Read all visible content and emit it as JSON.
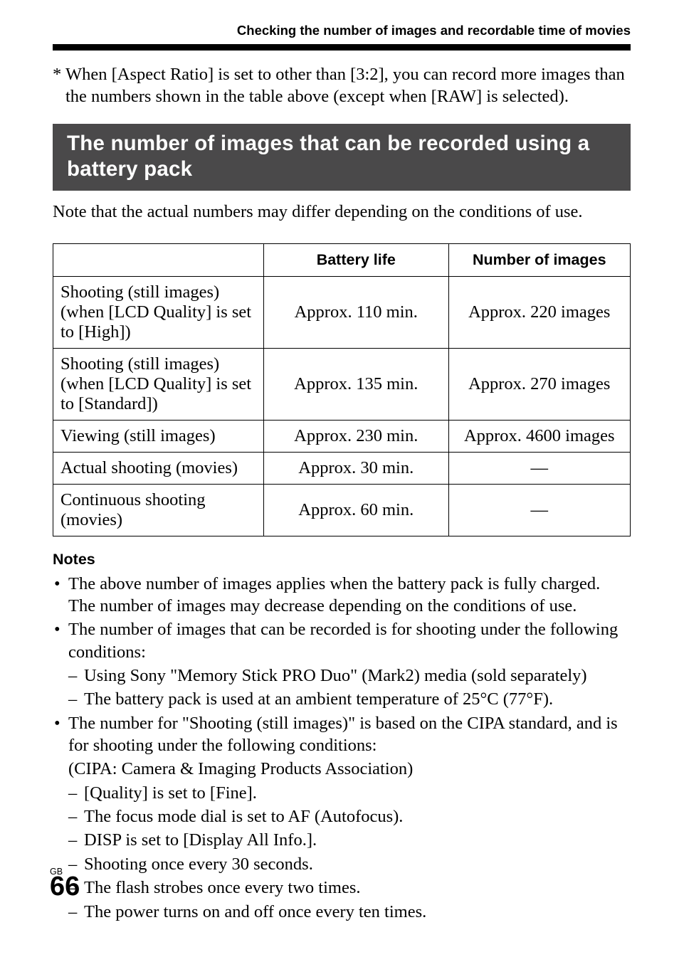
{
  "header": {
    "running_title": "Checking the number of images and recordable time of movies"
  },
  "footnote": {
    "marker": "*",
    "text": "When [Aspect Ratio] is set to other than [3:2], you can record more images than the numbers shown in the table above (except when [RAW] is selected)."
  },
  "section_title": "The number of images that can be recorded using a battery pack",
  "intro": "Note that the actual numbers may differ depending on the conditions of use.",
  "table": {
    "columns": [
      "",
      "Battery life",
      "Number of images"
    ],
    "col_widths_pct": [
      36.5,
      32,
      31.5
    ],
    "border_color": "#000000",
    "header_font_family": "Arial",
    "header_fontsize_pt": 16,
    "cell_fontsize_pt": 18,
    "rows": [
      {
        "label": "Shooting (still images) (when [LCD Quality] is set to [High])",
        "battery": "Approx. 110 min.",
        "images": "Approx. 220 images"
      },
      {
        "label": "Shooting (still images) (when [LCD Quality] is set to [Standard])",
        "battery": "Approx. 135 min.",
        "images": "Approx. 270 images"
      },
      {
        "label": "Viewing (still images)",
        "battery": "Approx. 230 min.",
        "images": "Approx. 4600 images"
      },
      {
        "label": "Actual shooting (movies)",
        "battery": "Approx. 30 min.",
        "images": "—"
      },
      {
        "label": "Continuous shooting (movies)",
        "battery": "Approx. 60 min.",
        "images": "—"
      }
    ]
  },
  "notes": {
    "heading": "Notes",
    "items": [
      {
        "text": "The above number of images applies when the battery pack is fully charged. The number of images may decrease depending on the conditions of use."
      },
      {
        "text": "The number of images that can be recorded is for shooting under the following conditions:",
        "sub": [
          "Using Sony \"Memory Stick PRO Duo\" (Mark2) media (sold separately)",
          "The battery pack is used at an ambient temperature of 25°C (77°F)."
        ]
      },
      {
        "text": "The number for \"Shooting (still images)\" is based on the CIPA standard, and is for shooting under the following conditions:",
        "plain_after": "(CIPA: Camera & Imaging Products Association)",
        "sub": [
          "[Quality] is set to [Fine].",
          "The focus mode dial is set to AF (Autofocus).",
          "DISP is set to [Display All Info.].",
          "Shooting once every 30 seconds.",
          "The flash strobes once every two times.",
          "The power turns on and off once every ten times."
        ]
      }
    ]
  },
  "page_number": {
    "prefix": "GB",
    "number": "66"
  },
  "styles": {
    "section_bar_bg": "#4a494a",
    "section_bar_color": "#ffffff",
    "rule_color": "#000000",
    "page_bg": "#ffffff",
    "body_font": "Times New Roman",
    "heading_font": "Arial"
  }
}
